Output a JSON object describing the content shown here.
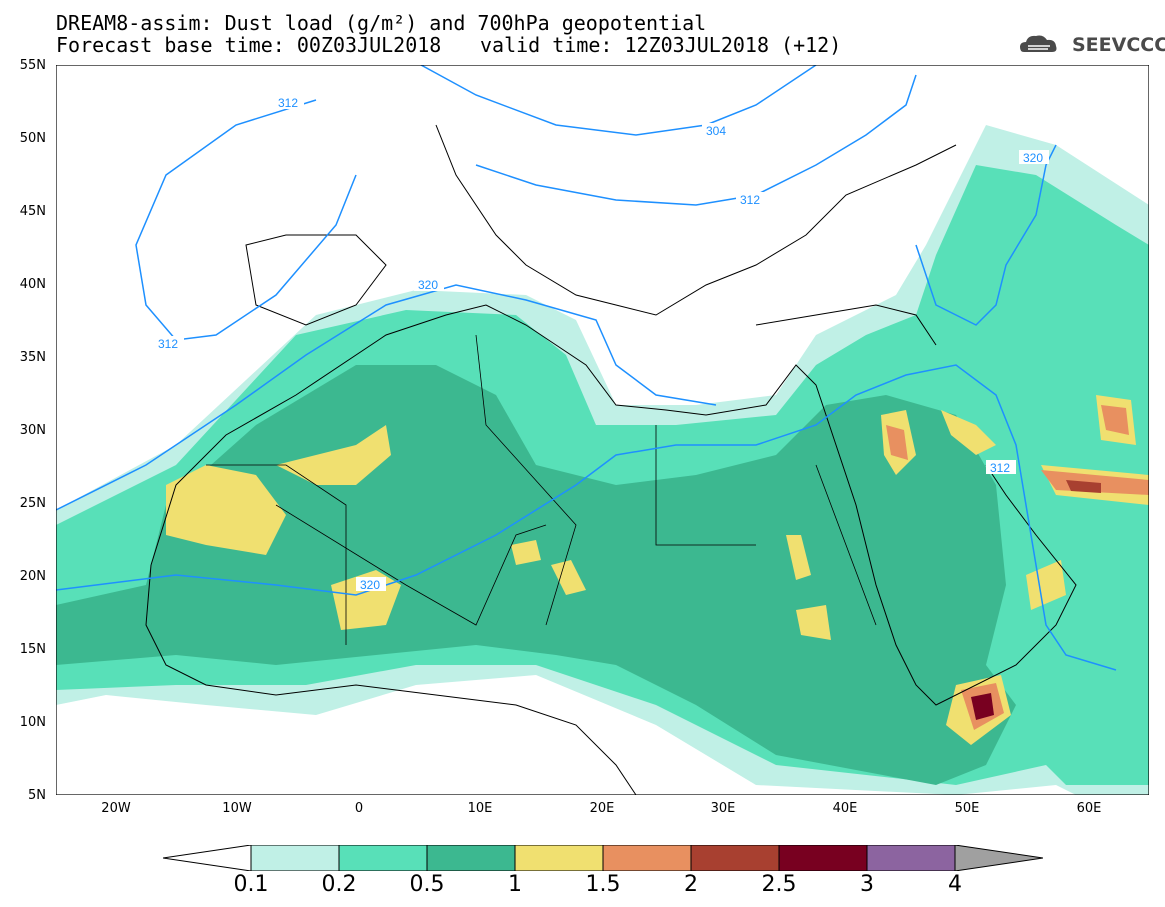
{
  "title": {
    "line1": "DREAM8-assim: Dust load (g/m²) and 700hPa geopotential",
    "line2_left": "Forecast base time: 00Z03JUL2018",
    "line2_right": "valid time: 12Z03JUL2018 (+12)"
  },
  "logo": {
    "text": "SEEVCCC",
    "icon": "cloud-icon"
  },
  "axes": {
    "lat_labels": [
      "55N",
      "50N",
      "45N",
      "40N",
      "35N",
      "30N",
      "25N",
      "20N",
      "15N",
      "10N",
      "5N"
    ],
    "lon_labels": [
      "20W",
      "10W",
      "0",
      "10E",
      "20E",
      "30E",
      "40E",
      "50E",
      "60E"
    ]
  },
  "contours": {
    "labels": [
      "312",
      "304",
      "312",
      "320",
      "312",
      "320",
      "320",
      "312"
    ],
    "color": "#1e90ff"
  },
  "colorbar": {
    "labels": [
      "0.1",
      "0.2",
      "0.5",
      "1",
      "1.5",
      "2",
      "2.5",
      "3",
      "4"
    ],
    "colors": [
      "#c0f0e6",
      "#58e0b8",
      "#3cb890",
      "#f0e070",
      "#e89060",
      "#a84030",
      "#780020",
      "#8c64a0",
      "#a0a0a0"
    ]
  }
}
